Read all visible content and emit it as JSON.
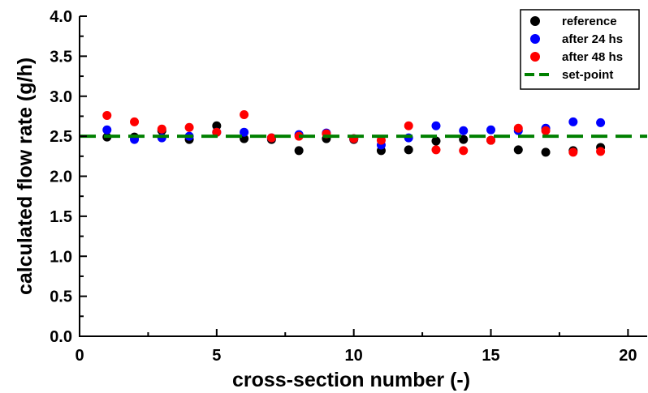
{
  "chart_data": {
    "type": "scatter",
    "xlabel": "cross-section number (-)",
    "ylabel": "calculated flow rate (g/h)",
    "xlim": [
      0,
      20.7
    ],
    "ylim": [
      0.0,
      4.0
    ],
    "x_ticks": [
      0,
      5,
      10,
      15,
      20
    ],
    "x_tick_labels": [
      "0",
      "5",
      "10",
      "15",
      "20"
    ],
    "y_ticks": [
      0.0,
      0.5,
      1.0,
      1.5,
      2.0,
      2.5,
      3.0,
      3.5,
      4.0
    ],
    "y_tick_labels": [
      "0.0",
      "0.5",
      "1.0",
      "1.5",
      "2.0",
      "2.5",
      "3.0",
      "3.5",
      "4.0"
    ],
    "grid": false,
    "legend_position": "top-right",
    "series": [
      {
        "name": "reference",
        "color": "#000000",
        "marker": "circle",
        "x": [
          1,
          2,
          3,
          4,
          5,
          6,
          7,
          8,
          9,
          10,
          11,
          12,
          13,
          14,
          15,
          16,
          17,
          18,
          19
        ],
        "y": [
          2.49,
          2.49,
          2.57,
          2.46,
          2.63,
          2.47,
          2.46,
          2.32,
          2.47,
          2.46,
          2.32,
          2.33,
          2.44,
          2.46,
          2.45,
          2.33,
          2.3,
          2.32,
          2.36
        ]
      },
      {
        "name": "after 24 hs",
        "color": "#0000ff",
        "marker": "circle",
        "x": [
          1,
          2,
          3,
          4,
          5,
          6,
          7,
          8,
          9,
          10,
          11,
          12,
          13,
          14,
          15,
          16,
          17,
          18,
          19
        ],
        "y": [
          2.58,
          2.46,
          2.48,
          2.5,
          2.55,
          2.55,
          2.48,
          2.52,
          2.54,
          2.47,
          2.39,
          2.48,
          2.63,
          2.57,
          2.58,
          2.57,
          2.6,
          2.68,
          2.67
        ]
      },
      {
        "name": "after 48 hs",
        "color": "#ff0000",
        "marker": "circle",
        "x": [
          1,
          2,
          3,
          4,
          5,
          6,
          7,
          8,
          9,
          10,
          11,
          12,
          13,
          14,
          15,
          16,
          17,
          18,
          19
        ],
        "y": [
          2.76,
          2.68,
          2.59,
          2.61,
          2.55,
          2.77,
          2.48,
          2.5,
          2.53,
          2.47,
          2.45,
          2.63,
          2.33,
          2.32,
          2.45,
          2.6,
          2.57,
          2.3,
          2.31
        ]
      },
      {
        "name": "set-point",
        "color": "#008000",
        "marker": "dashed-line",
        "x": [
          0,
          20.7
        ],
        "y": [
          2.5,
          2.5
        ]
      }
    ]
  }
}
